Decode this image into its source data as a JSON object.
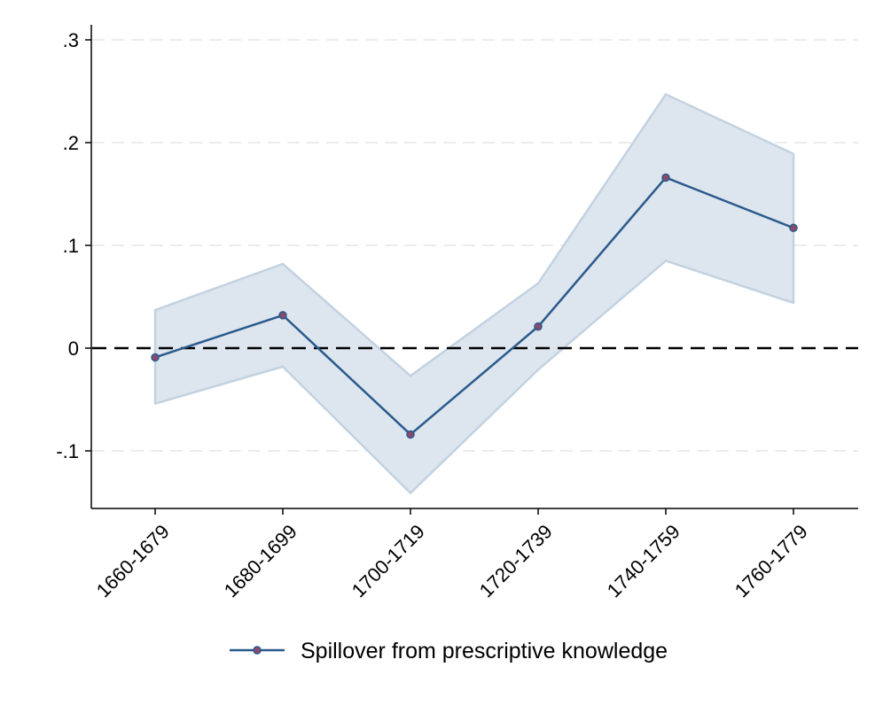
{
  "chart_data": {
    "type": "line",
    "title": "",
    "xlabel": "",
    "ylabel": "",
    "categories": [
      "1660-1679",
      "1680-1699",
      "1700-1719",
      "1720-1739",
      "1740-1759",
      "1760-1779"
    ],
    "series": [
      {
        "name": "Spillover from prescriptive knowledge",
        "values": [
          -0.009,
          0.032,
          -0.084,
          0.021,
          0.166,
          0.117
        ],
        "ci_lower": [
          -0.054,
          -0.018,
          -0.141,
          -0.021,
          0.085,
          0.044
        ],
        "ci_upper": [
          0.037,
          0.082,
          -0.027,
          0.063,
          0.247,
          0.189
        ],
        "line_color": "#2a5a8c",
        "marker_color": "#8b4a6b",
        "ci_fill_color": "#dde5ee",
        "ci_stroke_color": "#c3d2e0"
      }
    ],
    "ylim": [
      -0.155,
      0.315
    ],
    "yticks": [
      -0.1,
      0,
      0.1,
      0.2,
      0.3
    ],
    "ytick_labels": [
      "-.1",
      "0",
      ".1",
      ".2",
      ".3"
    ],
    "reference_line": {
      "y": 0,
      "style": "dashed",
      "color": "#000000"
    },
    "grid": true,
    "grid_color": "#e6e6e6",
    "legend_position": "bottom"
  }
}
